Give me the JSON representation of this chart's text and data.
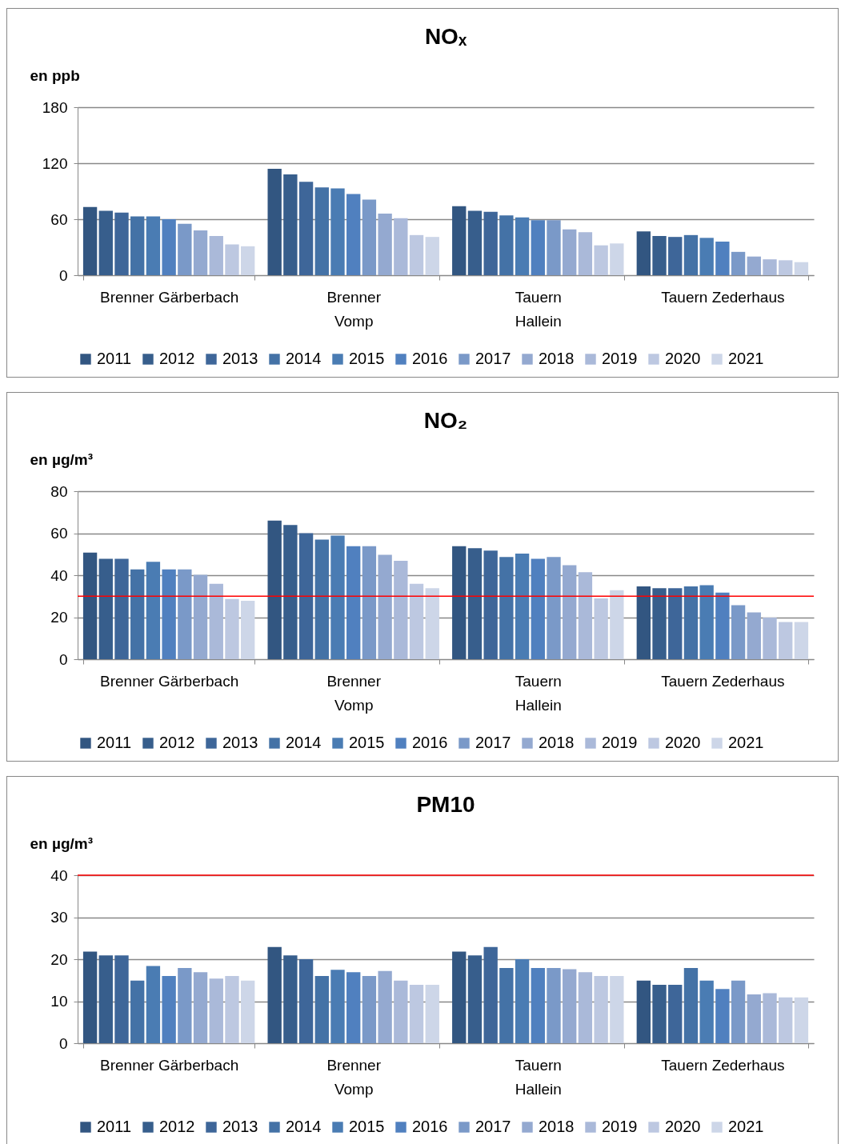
{
  "chart_data": [
    {
      "type": "bar",
      "title": "NOₓ",
      "ylabel": "en ppb",
      "categories": [
        "Brenner Gärberbach",
        "Brenner Vomp",
        "Tauern Hallein",
        "Tauern Zederhaus"
      ],
      "ylim": [
        0,
        180
      ],
      "yticks": [
        0,
        60,
        120,
        180
      ],
      "grid": "y",
      "legend": "bottom",
      "series": [
        {
          "name": "2011",
          "color": "#325681",
          "values": [
            73,
            114,
            74,
            47
          ]
        },
        {
          "name": "2012",
          "color": "#375e8c",
          "values": [
            69,
            108,
            69,
            42
          ]
        },
        {
          "name": "2013",
          "color": "#3e6699",
          "values": [
            67,
            100,
            68,
            41
          ]
        },
        {
          "name": "2014",
          "color": "#4472a6",
          "values": [
            63,
            94,
            64,
            43
          ]
        },
        {
          "name": "2015",
          "color": "#4a7cb3",
          "values": [
            63,
            93,
            62,
            40
          ]
        },
        {
          "name": "2016",
          "color": "#5080bf",
          "values": [
            60,
            87,
            59,
            36
          ]
        },
        {
          "name": "2017",
          "color": "#7a99c8",
          "values": [
            55,
            81,
            59,
            25
          ]
        },
        {
          "name": "2018",
          "color": "#94a9d0",
          "values": [
            48,
            66,
            49,
            20
          ]
        },
        {
          "name": "2019",
          "color": "#aab9d9",
          "values": [
            42,
            61,
            46,
            17
          ]
        },
        {
          "name": "2020",
          "color": "#bdc8e1",
          "values": [
            33,
            43,
            32,
            16
          ]
        },
        {
          "name": "2021",
          "color": "#cdd6e8",
          "values": [
            31,
            41,
            34,
            14
          ]
        }
      ]
    },
    {
      "type": "bar",
      "title": "NO₂",
      "ylabel": "en µg/m³",
      "categories": [
        "Brenner Gärberbach",
        "Brenner Vomp",
        "Tauern Hallein",
        "Tauern Zederhaus"
      ],
      "ylim": [
        0,
        80
      ],
      "yticks": [
        0,
        20,
        40,
        60,
        80
      ],
      "grid": "y",
      "legend": "bottom",
      "ref_lines": [
        {
          "axis": "y",
          "value": 30,
          "color": "#ff0000"
        }
      ],
      "series": [
        {
          "name": "2011",
          "color": "#325681",
          "values": [
            50.8,
            66,
            53.8,
            34.7
          ]
        },
        {
          "name": "2012",
          "color": "#375e8c",
          "values": [
            47.8,
            63.9,
            52.9,
            33.8
          ]
        },
        {
          "name": "2013",
          "color": "#3e6699",
          "values": [
            47.8,
            60,
            51.7,
            33.8
          ]
        },
        {
          "name": "2014",
          "color": "#4472a6",
          "values": [
            42.8,
            57,
            48.7,
            34.7
          ]
        },
        {
          "name": "2015",
          "color": "#4a7cb3",
          "values": [
            46.4,
            58.9,
            50.3,
            35.2
          ]
        },
        {
          "name": "2016",
          "color": "#5080bf",
          "values": [
            42.8,
            53.8,
            47.8,
            31.7
          ]
        },
        {
          "name": "2017",
          "color": "#7a99c8",
          "values": [
            42.8,
            53.8,
            48.7,
            25.7
          ]
        },
        {
          "name": "2018",
          "color": "#94a9d0",
          "values": [
            40.2,
            49.7,
            44.8,
            22.3
          ]
        },
        {
          "name": "2019",
          "color": "#aab9d9",
          "values": [
            35.9,
            46.9,
            41.4,
            19.8
          ]
        },
        {
          "name": "2020",
          "color": "#bdc8e1",
          "values": [
            28.7,
            35.9,
            29,
            17.7
          ]
        },
        {
          "name": "2021",
          "color": "#cdd6e8",
          "values": [
            27.8,
            33.8,
            32.9,
            17.7
          ]
        }
      ]
    },
    {
      "type": "bar",
      "title": "PM10",
      "ylabel": "en µg/m³",
      "categories": [
        "Brenner Gärberbach",
        "Brenner Vomp",
        "Tauern Hallein",
        "Tauern Zederhaus"
      ],
      "ylim": [
        0,
        40
      ],
      "yticks": [
        0,
        10,
        20,
        30,
        40
      ],
      "grid": "y",
      "legend": "bottom",
      "ref_lines": [
        {
          "axis": "y",
          "value": 40,
          "color": "#ff0000"
        }
      ],
      "series": [
        {
          "name": "2011",
          "color": "#325681",
          "values": [
            21.8,
            22.9,
            21.8,
            14.9
          ]
        },
        {
          "name": "2012",
          "color": "#375e8c",
          "values": [
            20.9,
            20.9,
            20.9,
            13.9
          ]
        },
        {
          "name": "2013",
          "color": "#3e6699",
          "values": [
            20.9,
            20,
            22.9,
            13.9
          ]
        },
        {
          "name": "2014",
          "color": "#4472a6",
          "values": [
            14.9,
            16,
            17.9,
            17.9
          ]
        },
        {
          "name": "2015",
          "color": "#4a7cb3",
          "values": [
            18.4,
            17.5,
            20,
            14.9
          ]
        },
        {
          "name": "2016",
          "color": "#5080bf",
          "values": [
            16,
            16.9,
            17.9,
            12.9
          ]
        },
        {
          "name": "2017",
          "color": "#7a99c8",
          "values": [
            17.9,
            16,
            17.9,
            14.9
          ]
        },
        {
          "name": "2018",
          "color": "#94a9d0",
          "values": [
            16.9,
            17.2,
            17.6,
            11.6
          ]
        },
        {
          "name": "2019",
          "color": "#aab9d9",
          "values": [
            15.4,
            14.9,
            16.9,
            11.9
          ]
        },
        {
          "name": "2020",
          "color": "#bdc8e1",
          "values": [
            16,
            13.9,
            16,
            10.9
          ]
        },
        {
          "name": "2021",
          "color": "#cdd6e8",
          "values": [
            14.9,
            13.9,
            16,
            10.9
          ]
        }
      ]
    }
  ]
}
